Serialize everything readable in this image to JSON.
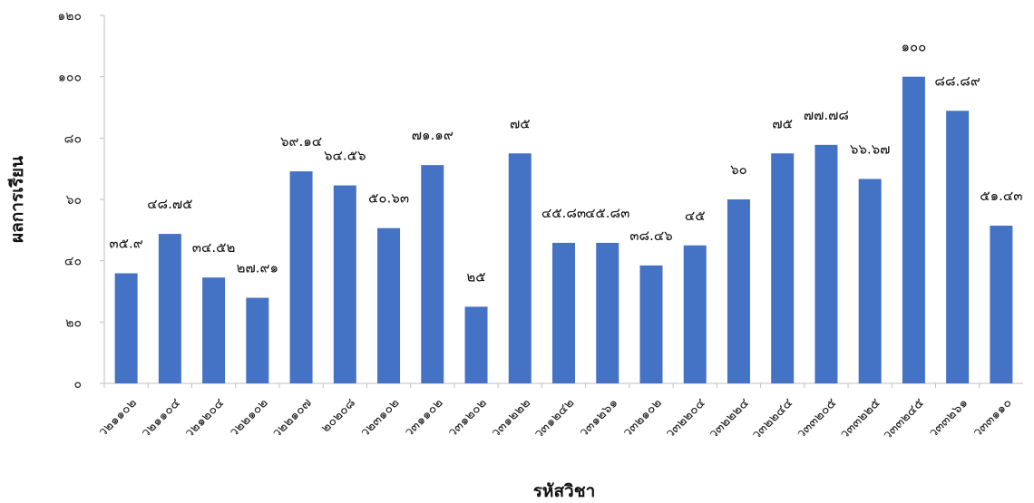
{
  "chart_data": {
    "type": "bar",
    "xlabel": "รหัสวิชา",
    "ylabel": "ผลการเรียน",
    "ylim": [
      0,
      120
    ],
    "yticks": [
      0,
      20,
      40,
      60,
      80,
      100,
      120
    ],
    "ytick_labels": [
      "๐",
      "๒๐",
      "๔๐",
      "๖๐",
      "๘๐",
      "๑๐๐",
      "๑๒๐"
    ],
    "grid": false,
    "bar_color": "#4472C4",
    "categories": [
      "ว๒๑๑๐๒",
      "ว๒๑๑๐๔",
      "ว๒๑๒๐๔",
      "ว๒๒๑๐๒",
      "ว๒๒๑๐๗",
      "๒๐๒๐๘",
      "ว๒๓๑๐๒",
      "ว๓๑๑๐๒",
      "ว๓๑๒๐๒",
      "ว๓๑๒๒๒",
      "ว๓๑๒๔๒",
      "ว๓๑๒๖๑",
      "ว๓๒๑๐๒",
      "ว๓๒๒๐๔",
      "ว๓๒๒๒๔",
      "ว๓๒๒๔๔",
      "ว๓๓๒๐๕",
      "ว๓๓๒๒๕",
      "ว๓๓๒๔๕",
      "ว๓๓๒๖๑",
      "ว๓๓๑๑๐"
    ],
    "values": [
      35.9,
      48.75,
      34.52,
      27.91,
      69.14,
      64.56,
      50.63,
      71.19,
      25,
      75,
      45.83,
      45.83,
      38.46,
      45,
      60,
      75,
      77.78,
      66.67,
      100,
      88.89,
      51.43
    ],
    "value_labels": [
      "๓๕.๙",
      "๔๘.๗๕",
      "๓๔.๕๒",
      "๒๗.๙๑",
      "๖๙.๑๔",
      "๖๔.๕๖",
      "๕๐.๖๓",
      "๗๑.๑๙",
      "๒๕",
      "๗๕",
      "๔๕.๘๓",
      "๔๕.๘๓",
      "๓๘.๔๖",
      "๔๕",
      "๖๐",
      "๗๕",
      "๗๗.๗๘",
      "๖๖.๖๗",
      "๑๐๐",
      "๘๘.๘๙",
      "๕๑.๔๓"
    ]
  }
}
